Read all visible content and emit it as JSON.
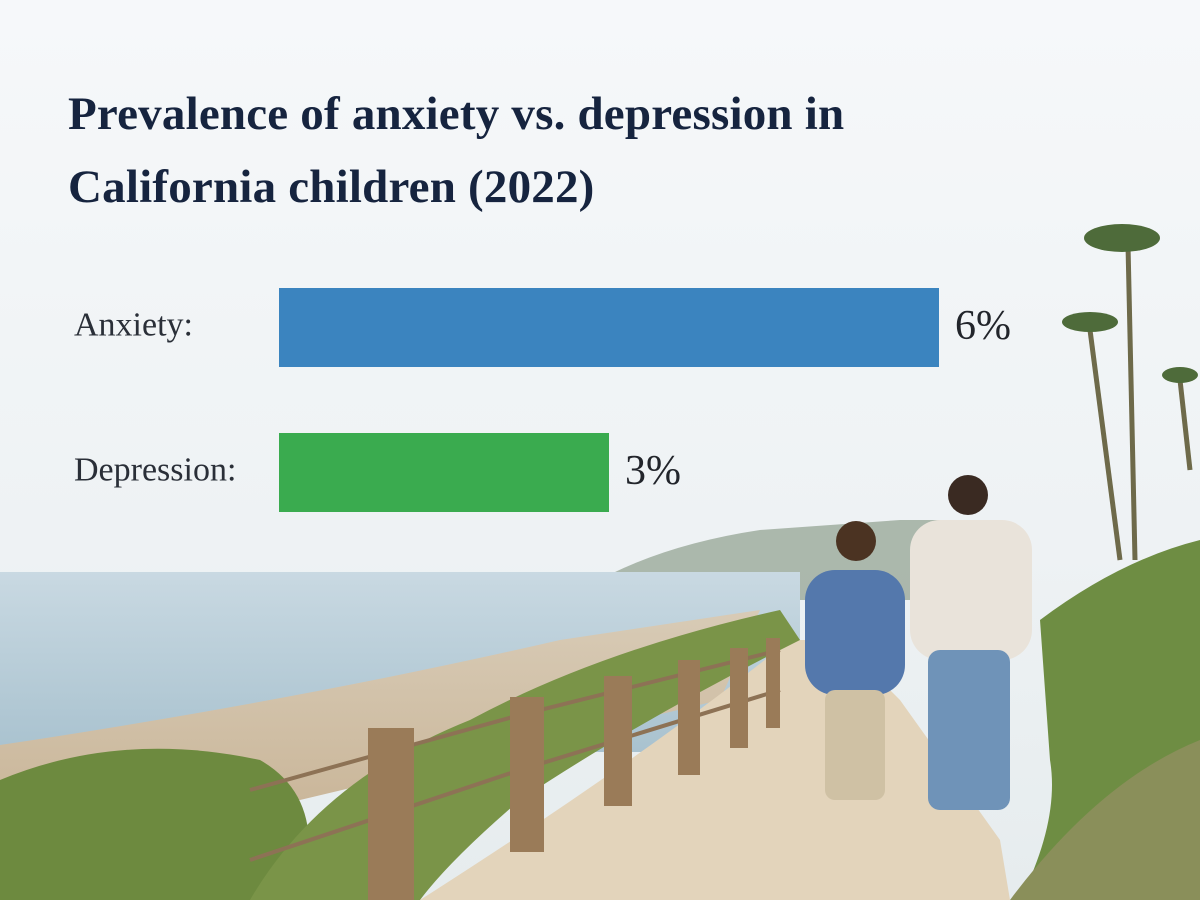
{
  "chart_data": {
    "type": "bar",
    "title": "Prevalence of anxiety vs. depression in California children (2022)",
    "categories": [
      "Anxiety:",
      "Depression:"
    ],
    "values": [
      6,
      3
    ],
    "value_labels": [
      "6%",
      "3%"
    ],
    "colors": [
      "#3b84bf",
      "#3aab4f"
    ]
  }
}
